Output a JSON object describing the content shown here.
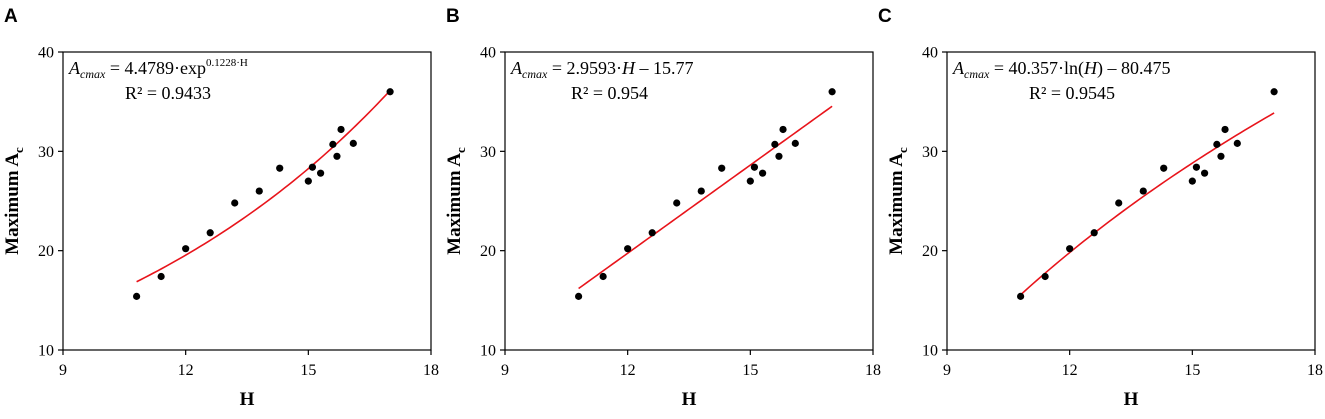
{
  "chart_data": [
    {
      "panel": "A",
      "type": "scatter",
      "xlabel": "H",
      "ylabel": "Maximum A",
      "ylabel_sub": "c",
      "xlim": [
        9,
        18
      ],
      "ylim": [
        10,
        40
      ],
      "xticks": [
        9,
        12,
        15,
        18
      ],
      "yticks": [
        10,
        20,
        30,
        40
      ],
      "grid": false,
      "points": [
        {
          "x": 10.8,
          "y": 15.4
        },
        {
          "x": 11.4,
          "y": 17.4
        },
        {
          "x": 12.0,
          "y": 20.2
        },
        {
          "x": 12.6,
          "y": 21.8
        },
        {
          "x": 13.2,
          "y": 24.8
        },
        {
          "x": 13.8,
          "y": 26.0
        },
        {
          "x": 14.3,
          "y": 28.3
        },
        {
          "x": 15.0,
          "y": 27.0
        },
        {
          "x": 15.1,
          "y": 28.4
        },
        {
          "x": 15.3,
          "y": 27.8
        },
        {
          "x": 15.6,
          "y": 30.7
        },
        {
          "x": 15.7,
          "y": 29.5
        },
        {
          "x": 15.8,
          "y": 32.2
        },
        {
          "x": 16.1,
          "y": 30.8
        },
        {
          "x": 17.0,
          "y": 36.0
        }
      ],
      "fit": {
        "model": "exp",
        "a": 4.4789,
        "b": 0.1228,
        "x_range": [
          10.8,
          17.0
        ]
      },
      "equation": {
        "lhs": "A",
        "lhs_sub": "cmax",
        "rhs": " = 4.4789·exp",
        "rhs_sup": "0.1228·H"
      },
      "r2": "R² = 0.9433"
    },
    {
      "panel": "B",
      "type": "scatter",
      "xlabel": "H",
      "ylabel": "Maximum A",
      "ylabel_sub": "c",
      "xlim": [
        9,
        18
      ],
      "ylim": [
        10,
        40
      ],
      "xticks": [
        9,
        12,
        15,
        18
      ],
      "yticks": [
        10,
        20,
        30,
        40
      ],
      "grid": false,
      "points": [
        {
          "x": 10.8,
          "y": 15.4
        },
        {
          "x": 11.4,
          "y": 17.4
        },
        {
          "x": 12.0,
          "y": 20.2
        },
        {
          "x": 12.6,
          "y": 21.8
        },
        {
          "x": 13.2,
          "y": 24.8
        },
        {
          "x": 13.8,
          "y": 26.0
        },
        {
          "x": 14.3,
          "y": 28.3
        },
        {
          "x": 15.0,
          "y": 27.0
        },
        {
          "x": 15.1,
          "y": 28.4
        },
        {
          "x": 15.3,
          "y": 27.8
        },
        {
          "x": 15.6,
          "y": 30.7
        },
        {
          "x": 15.7,
          "y": 29.5
        },
        {
          "x": 15.8,
          "y": 32.2
        },
        {
          "x": 16.1,
          "y": 30.8
        },
        {
          "x": 17.0,
          "y": 36.0
        }
      ],
      "fit": {
        "model": "linear",
        "a": 2.9593,
        "b": -15.77,
        "x_range": [
          10.8,
          17.0
        ]
      },
      "equation": {
        "lhs": "A",
        "lhs_sub": "cmax",
        "rhs": " = 2.9593·",
        "rhs_var": "H",
        "rhs_tail": " – 15.77"
      },
      "r2": "R² = 0.954"
    },
    {
      "panel": "C",
      "type": "scatter",
      "xlabel": "H",
      "ylabel": "Maximum A",
      "ylabel_sub": "c",
      "xlim": [
        9,
        18
      ],
      "ylim": [
        10,
        40
      ],
      "xticks": [
        9,
        12,
        15,
        18
      ],
      "yticks": [
        10,
        20,
        30,
        40
      ],
      "grid": false,
      "points": [
        {
          "x": 10.8,
          "y": 15.4
        },
        {
          "x": 11.4,
          "y": 17.4
        },
        {
          "x": 12.0,
          "y": 20.2
        },
        {
          "x": 12.6,
          "y": 21.8
        },
        {
          "x": 13.2,
          "y": 24.8
        },
        {
          "x": 13.8,
          "y": 26.0
        },
        {
          "x": 14.3,
          "y": 28.3
        },
        {
          "x": 15.0,
          "y": 27.0
        },
        {
          "x": 15.1,
          "y": 28.4
        },
        {
          "x": 15.3,
          "y": 27.8
        },
        {
          "x": 15.6,
          "y": 30.7
        },
        {
          "x": 15.7,
          "y": 29.5
        },
        {
          "x": 15.8,
          "y": 32.2
        },
        {
          "x": 16.1,
          "y": 30.8
        },
        {
          "x": 17.0,
          "y": 36.0
        }
      ],
      "fit": {
        "model": "log",
        "a": 40.357,
        "b": -80.475,
        "x_range": [
          10.8,
          17.0
        ]
      },
      "equation": {
        "lhs": "A",
        "lhs_sub": "cmax",
        "rhs": " = 40.357·ln(",
        "rhs_var": "H",
        "rhs_tail": ") – 80.475"
      },
      "r2": "R² = 0.9545"
    }
  ],
  "colors": {
    "fit_line": "#e8141b",
    "points": "#000000",
    "axes": "#000000"
  }
}
